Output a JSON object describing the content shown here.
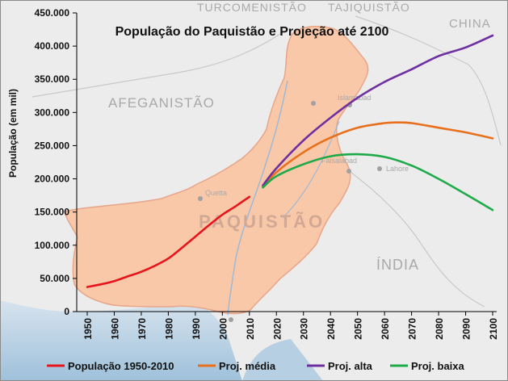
{
  "chart_data": {
    "type": "line",
    "title": "População do Paquistão e Projeção até 2100",
    "ylabel": "População (em mil)",
    "xlabel": "",
    "ylim": [
      0,
      450000
    ],
    "xlim": [
      1950,
      2100
    ],
    "yticks": [
      0,
      50000,
      100000,
      150000,
      200000,
      250000,
      300000,
      350000,
      400000,
      450000
    ],
    "ytick_labels": [
      "0",
      "50.000",
      "100.000",
      "150.000",
      "200.000",
      "250.000",
      "300.000",
      "350.000",
      "400.000",
      "450.000"
    ],
    "xticks": [
      1950,
      1960,
      1970,
      1980,
      1990,
      2000,
      2010,
      2020,
      2030,
      2040,
      2050,
      2060,
      2070,
      2080,
      2090,
      2100
    ],
    "xtick_labels": [
      "1950",
      "1960",
      "1970",
      "1980",
      "1990",
      "2000",
      "2010",
      "2020",
      "2030",
      "2040",
      "2050",
      "2060",
      "2070",
      "2080",
      "2090",
      "2100"
    ],
    "grid": false,
    "legend_position": "bottom",
    "series": [
      {
        "name": "População 1950-2010",
        "color": "#e8141b",
        "x": [
          1950,
          1955,
          1960,
          1965,
          1970,
          1975,
          1980,
          1985,
          1990,
          1995,
          2000,
          2005,
          2010
        ],
        "values": [
          37000,
          41000,
          46000,
          53000,
          60000,
          69000,
          80000,
          96000,
          113000,
          130000,
          146000,
          159000,
          173000
        ]
      },
      {
        "name": "Proj. média",
        "color": "#e8701c",
        "x": [
          2015,
          2020,
          2030,
          2040,
          2050,
          2060,
          2065,
          2070,
          2080,
          2090,
          2100
        ],
        "values": [
          188000,
          210000,
          240000,
          262000,
          277000,
          284000,
          285000,
          284000,
          277000,
          270000,
          261000
        ]
      },
      {
        "name": "Proj. alta",
        "color": "#6e2fa0",
        "x": [
          2015,
          2020,
          2030,
          2040,
          2050,
          2060,
          2070,
          2080,
          2090,
          2100
        ],
        "values": [
          190000,
          216000,
          258000,
          292000,
          322000,
          346000,
          365000,
          385000,
          398000,
          416000
        ]
      },
      {
        "name": "Proj. baixa",
        "color": "#1faa4a",
        "x": [
          2015,
          2020,
          2030,
          2040,
          2050,
          2060,
          2070,
          2080,
          2090,
          2100
        ],
        "values": [
          187000,
          204000,
          222000,
          234000,
          237000,
          233000,
          220000,
          200000,
          177000,
          153000
        ]
      }
    ]
  },
  "map_labels": {
    "neighbor_nw": "TURCOMENISTÃO",
    "neighbor_ne": "TAJIQUISTÃO",
    "china": "CHINA",
    "afeganistao": "AFEGANISTÃO",
    "paquistao": "PAQUISTÃO",
    "india": "ÍNDIA",
    "islamabad": "Islamabad",
    "faisalabad": "Faisalabad",
    "lahore": "Lahore",
    "quetta": "Quetta"
  }
}
